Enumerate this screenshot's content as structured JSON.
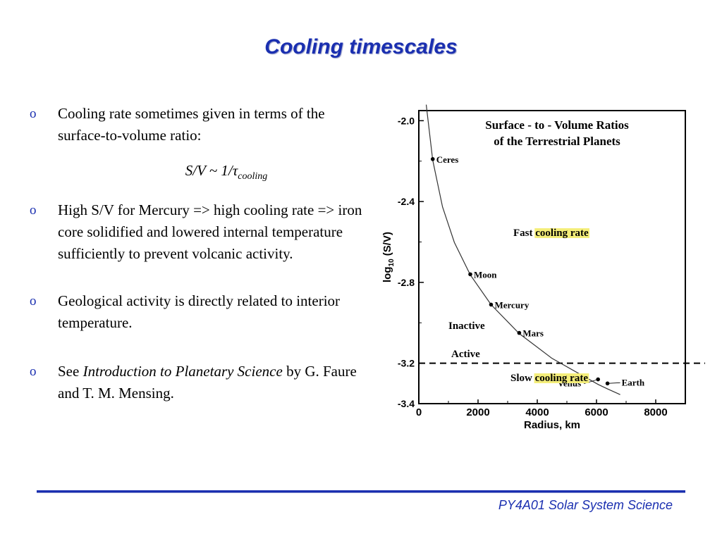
{
  "slide": {
    "title": "Cooling timescales",
    "bullet_mark": "o",
    "bullets": [
      {
        "text": "Cooling rate sometimes given in terms of the surface-to-volume ratio:"
      },
      {
        "text": "High S/V for Mercury => high cooling rate => iron core solidified and lowered internal temperature sufficiently to prevent volcanic activity."
      },
      {
        "text": "Geological activity is directly related to interior temperature."
      },
      {
        "pre": "See ",
        "italic": "Introduction to Planetary Science",
        "post": " by G. Faure and T. M. Mensing."
      }
    ],
    "formula": {
      "main": "S/V ~ 1/τ",
      "sub": "cooling"
    },
    "footer": "PY4A01 Solar System Science",
    "colors": {
      "title": "#1a2fb0",
      "highlight": "#f4ee7a",
      "rule": "#1a2fb0"
    }
  },
  "chart_data": {
    "type": "line",
    "title": "Surface - to - Volume Ratios",
    "subtitle": "of the Terrestrial Planets",
    "xlabel": "Radius, km",
    "ylabel": "log10 (S/V)",
    "xlim": [
      0,
      9000
    ],
    "ylim": [
      -3.4,
      -1.95
    ],
    "xticks": [
      0,
      2000,
      4000,
      6000,
      8000
    ],
    "xtick_labels": [
      "0",
      "2000",
      "4000",
      "6000",
      "8000"
    ],
    "yticks": [
      -2.0,
      -2.4,
      -2.8,
      -3.2,
      -3.4
    ],
    "ytick_labels": [
      "-2.0",
      "-2.4",
      "-2.8",
      "-3.2",
      "-3.4"
    ],
    "curve": {
      "x": [
        250,
        470,
        800,
        1200,
        1738,
        2440,
        3390,
        4500,
        6052,
        6371,
        6800
      ]
    },
    "series": [
      {
        "points": [
          {
            "name": "Ceres",
            "x": 470,
            "y": -2.19
          },
          {
            "name": "Moon",
            "x": 1738,
            "y": -2.76
          },
          {
            "name": "Mercury",
            "x": 2440,
            "y": -2.91
          },
          {
            "name": "Mars",
            "x": 3390,
            "y": -3.05
          },
          {
            "name": "Venus",
            "x": 6052,
            "y": -3.28
          },
          {
            "name": "Earth",
            "x": 6371,
            "y": -3.3
          }
        ]
      }
    ],
    "threshold": {
      "y": -3.2
    },
    "annotations": [
      {
        "pre": "Fast ",
        "hl": "cooling rate"
      },
      {
        "pre": "Inactive"
      },
      {
        "pre": "Active"
      },
      {
        "pre": "Slow ",
        "hl": "cooling rate"
      }
    ]
  }
}
